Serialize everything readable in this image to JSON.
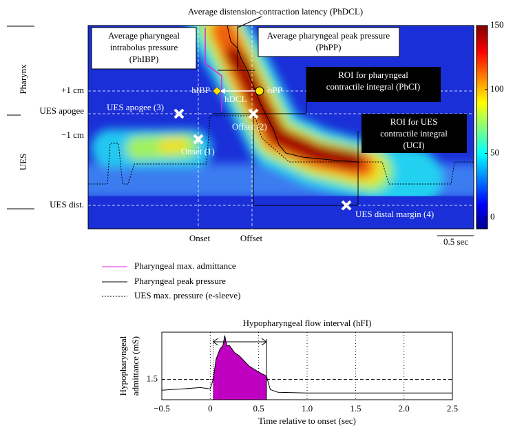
{
  "figure": {
    "title": "Average distension-contraction latency (PhDCL)",
    "callouts": [
      {
        "lines": [
          "Average pharyngeal",
          "intrabolus pressure",
          "(PhIBP)"
        ]
      },
      {
        "lines": [
          "Average pharyngeal peak pressure",
          "(PhPP)"
        ]
      },
      {
        "lines": [
          "ROI for pharyngeal",
          "contractile integral (PhCI)"
        ]
      },
      {
        "lines": [
          "ROI for UES",
          "contractile integral",
          "(UCI)"
        ]
      }
    ],
    "markers": [
      "hIBP",
      "hPP",
      "hDCL"
    ],
    "points": [
      "UES apogee (3)",
      "Offset (2)",
      "Onset (1)",
      "UES distal margin (4)"
    ],
    "region_labels": [
      "Pharynx",
      "UES"
    ],
    "level_labels": [
      "+1 cm",
      "UES apogee",
      "−1 cm",
      "UES dist."
    ],
    "time_labels": [
      "Onset",
      "Offset",
      "0.5 sec"
    ],
    "legend": [
      "Pharyngeal max. admittance",
      "Pharyngeal peak pressure",
      "UES max. pressure (e-sleeve)"
    ]
  },
  "chart_data": [
    {
      "type": "colorbar",
      "zlim": [
        -9,
        150
      ],
      "zticks": [
        0,
        50,
        100,
        150
      ]
    },
    {
      "type": "line",
      "title": "Hypopharyngeal flow interval (hFI)",
      "y_label": [
        "Hypopharyngeal",
        "admittance (mS)"
      ],
      "x_label": "Time relative to onset (sec)",
      "x": [
        -0.5,
        -0.3,
        -0.1,
        0,
        0.03,
        0.06,
        0.1,
        0.13,
        0.15,
        0.17,
        0.2,
        0.25,
        0.3,
        0.4,
        0.5,
        0.58,
        0.62,
        0.7,
        1.0,
        1.5,
        2.0,
        2.5
      ],
      "series": [
        {
          "color": "#000000",
          "values": [
            1.18,
            1.22,
            1.26,
            1.22,
            1.5,
            2.1,
            2.4,
            2.5,
            2.8,
            2.5,
            2.5,
            2.3,
            2.2,
            1.9,
            1.72,
            1.6,
            1.2,
            1.12,
            1.1,
            1.1,
            1.1,
            1.1
          ]
        }
      ],
      "interval": [
        0.03,
        0.58
      ],
      "fill_color": "#c000c0",
      "xlim": [
        -0.5,
        2.5
      ],
      "ylim": [
        0.9,
        2.9
      ],
      "xticks": [
        {
          "value": -0.5,
          "label": "−0.5"
        },
        0,
        0.5,
        {
          "value": 1,
          "label": "1.0"
        },
        1.5,
        {
          "value": 2,
          "label": "2.0"
        },
        2.5
      ],
      "yticks": [
        1.5
      ],
      "grid": true
    }
  ]
}
